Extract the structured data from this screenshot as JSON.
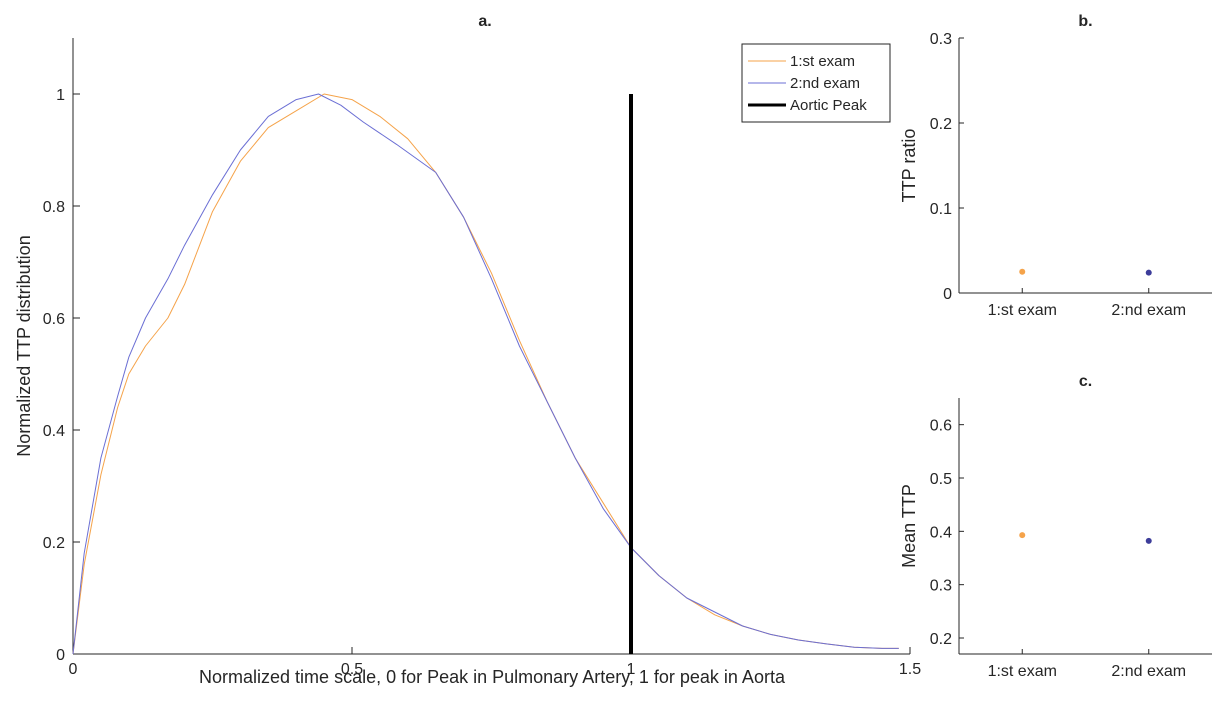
{
  "colors": {
    "exam1": "#f5a34a",
    "exam2": "#6b6fd4",
    "aortic": "#000000",
    "axis": "#262626"
  },
  "chart_data": [
    {
      "panel": "a",
      "type": "line",
      "title": "a.",
      "xlabel": "Normalized time scale, 0 for Peak in Pulmonary Artery, 1 for peak in Aorta",
      "ylabel": "Normalized TTP distribution",
      "xlim": [
        0,
        1.5
      ],
      "ylim": [
        0,
        1.1
      ],
      "xticks": [
        0,
        0.5,
        1,
        1.5
      ],
      "xtick_labels": [
        "0",
        "0.5",
        "1",
        "1.5"
      ],
      "yticks": [
        0,
        0.2,
        0.4,
        0.6,
        0.8,
        1
      ],
      "ytick_labels": [
        "0",
        "0.2",
        "0.4",
        "0.6",
        "0.8",
        "1"
      ],
      "grid": false,
      "legend_position": "top-right",
      "series": [
        {
          "name": "1:st exam",
          "color": "#f5a34a",
          "x": [
            0,
            0.02,
            0.05,
            0.08,
            0.1,
            0.13,
            0.17,
            0.2,
            0.25,
            0.3,
            0.35,
            0.4,
            0.45,
            0.5,
            0.55,
            0.6,
            0.65,
            0.7,
            0.75,
            0.8,
            0.85,
            0.9,
            0.95,
            1.0,
            1.05,
            1.1,
            1.15,
            1.2,
            1.25,
            1.3,
            1.35,
            1.4,
            1.45,
            1.48
          ],
          "y": [
            0,
            0.16,
            0.32,
            0.44,
            0.5,
            0.55,
            0.6,
            0.66,
            0.79,
            0.88,
            0.94,
            0.97,
            1.0,
            0.99,
            0.96,
            0.92,
            0.86,
            0.78,
            0.68,
            0.56,
            0.45,
            0.35,
            0.27,
            0.19,
            0.14,
            0.1,
            0.07,
            0.05,
            0.035,
            0.025,
            0.018,
            0.012,
            0.01,
            0.01
          ]
        },
        {
          "name": "2:nd exam",
          "color": "#6b6fd4",
          "x": [
            0,
            0.02,
            0.05,
            0.08,
            0.1,
            0.13,
            0.17,
            0.2,
            0.25,
            0.3,
            0.35,
            0.4,
            0.44,
            0.48,
            0.52,
            0.58,
            0.65,
            0.7,
            0.75,
            0.8,
            0.85,
            0.9,
            0.95,
            1.0,
            1.05,
            1.1,
            1.15,
            1.2,
            1.25,
            1.3,
            1.35,
            1.4,
            1.45,
            1.48
          ],
          "y": [
            0,
            0.18,
            0.35,
            0.46,
            0.53,
            0.6,
            0.67,
            0.73,
            0.82,
            0.9,
            0.96,
            0.99,
            1.0,
            0.98,
            0.95,
            0.91,
            0.86,
            0.78,
            0.67,
            0.55,
            0.45,
            0.35,
            0.26,
            0.19,
            0.14,
            0.1,
            0.075,
            0.05,
            0.035,
            0.025,
            0.018,
            0.012,
            0.01,
            0.01
          ]
        },
        {
          "name": "Aortic Peak",
          "color": "#000000",
          "x": [
            1,
            1
          ],
          "y": [
            0,
            1
          ]
        }
      ]
    },
    {
      "panel": "b",
      "type": "scatter",
      "title": "b.",
      "xlabel": "",
      "ylabel": "TTP ratio",
      "categories": [
        "1:st exam",
        "2:nd exam"
      ],
      "ylim": [
        0,
        0.3
      ],
      "yticks": [
        0,
        0.1,
        0.2,
        0.3
      ],
      "ytick_labels": [
        "0",
        "0.1",
        "0.2",
        "0.3"
      ],
      "grid": false,
      "values": [
        0.025,
        0.024
      ],
      "colors": [
        "#f5a34a",
        "#3d3d9a"
      ]
    },
    {
      "panel": "c",
      "type": "scatter",
      "title": "c.",
      "xlabel": "",
      "ylabel": "Mean TTP",
      "categories": [
        "1:st exam",
        "2:nd exam"
      ],
      "ylim": [
        0.17,
        0.65
      ],
      "yticks": [
        0.2,
        0.3,
        0.4,
        0.5,
        0.6
      ],
      "ytick_labels": [
        "0.2",
        "0.3",
        "0.4",
        "0.5",
        "0.6"
      ],
      "grid": false,
      "values": [
        0.393,
        0.382
      ],
      "colors": [
        "#f5a34a",
        "#3d3d9a"
      ]
    }
  ]
}
